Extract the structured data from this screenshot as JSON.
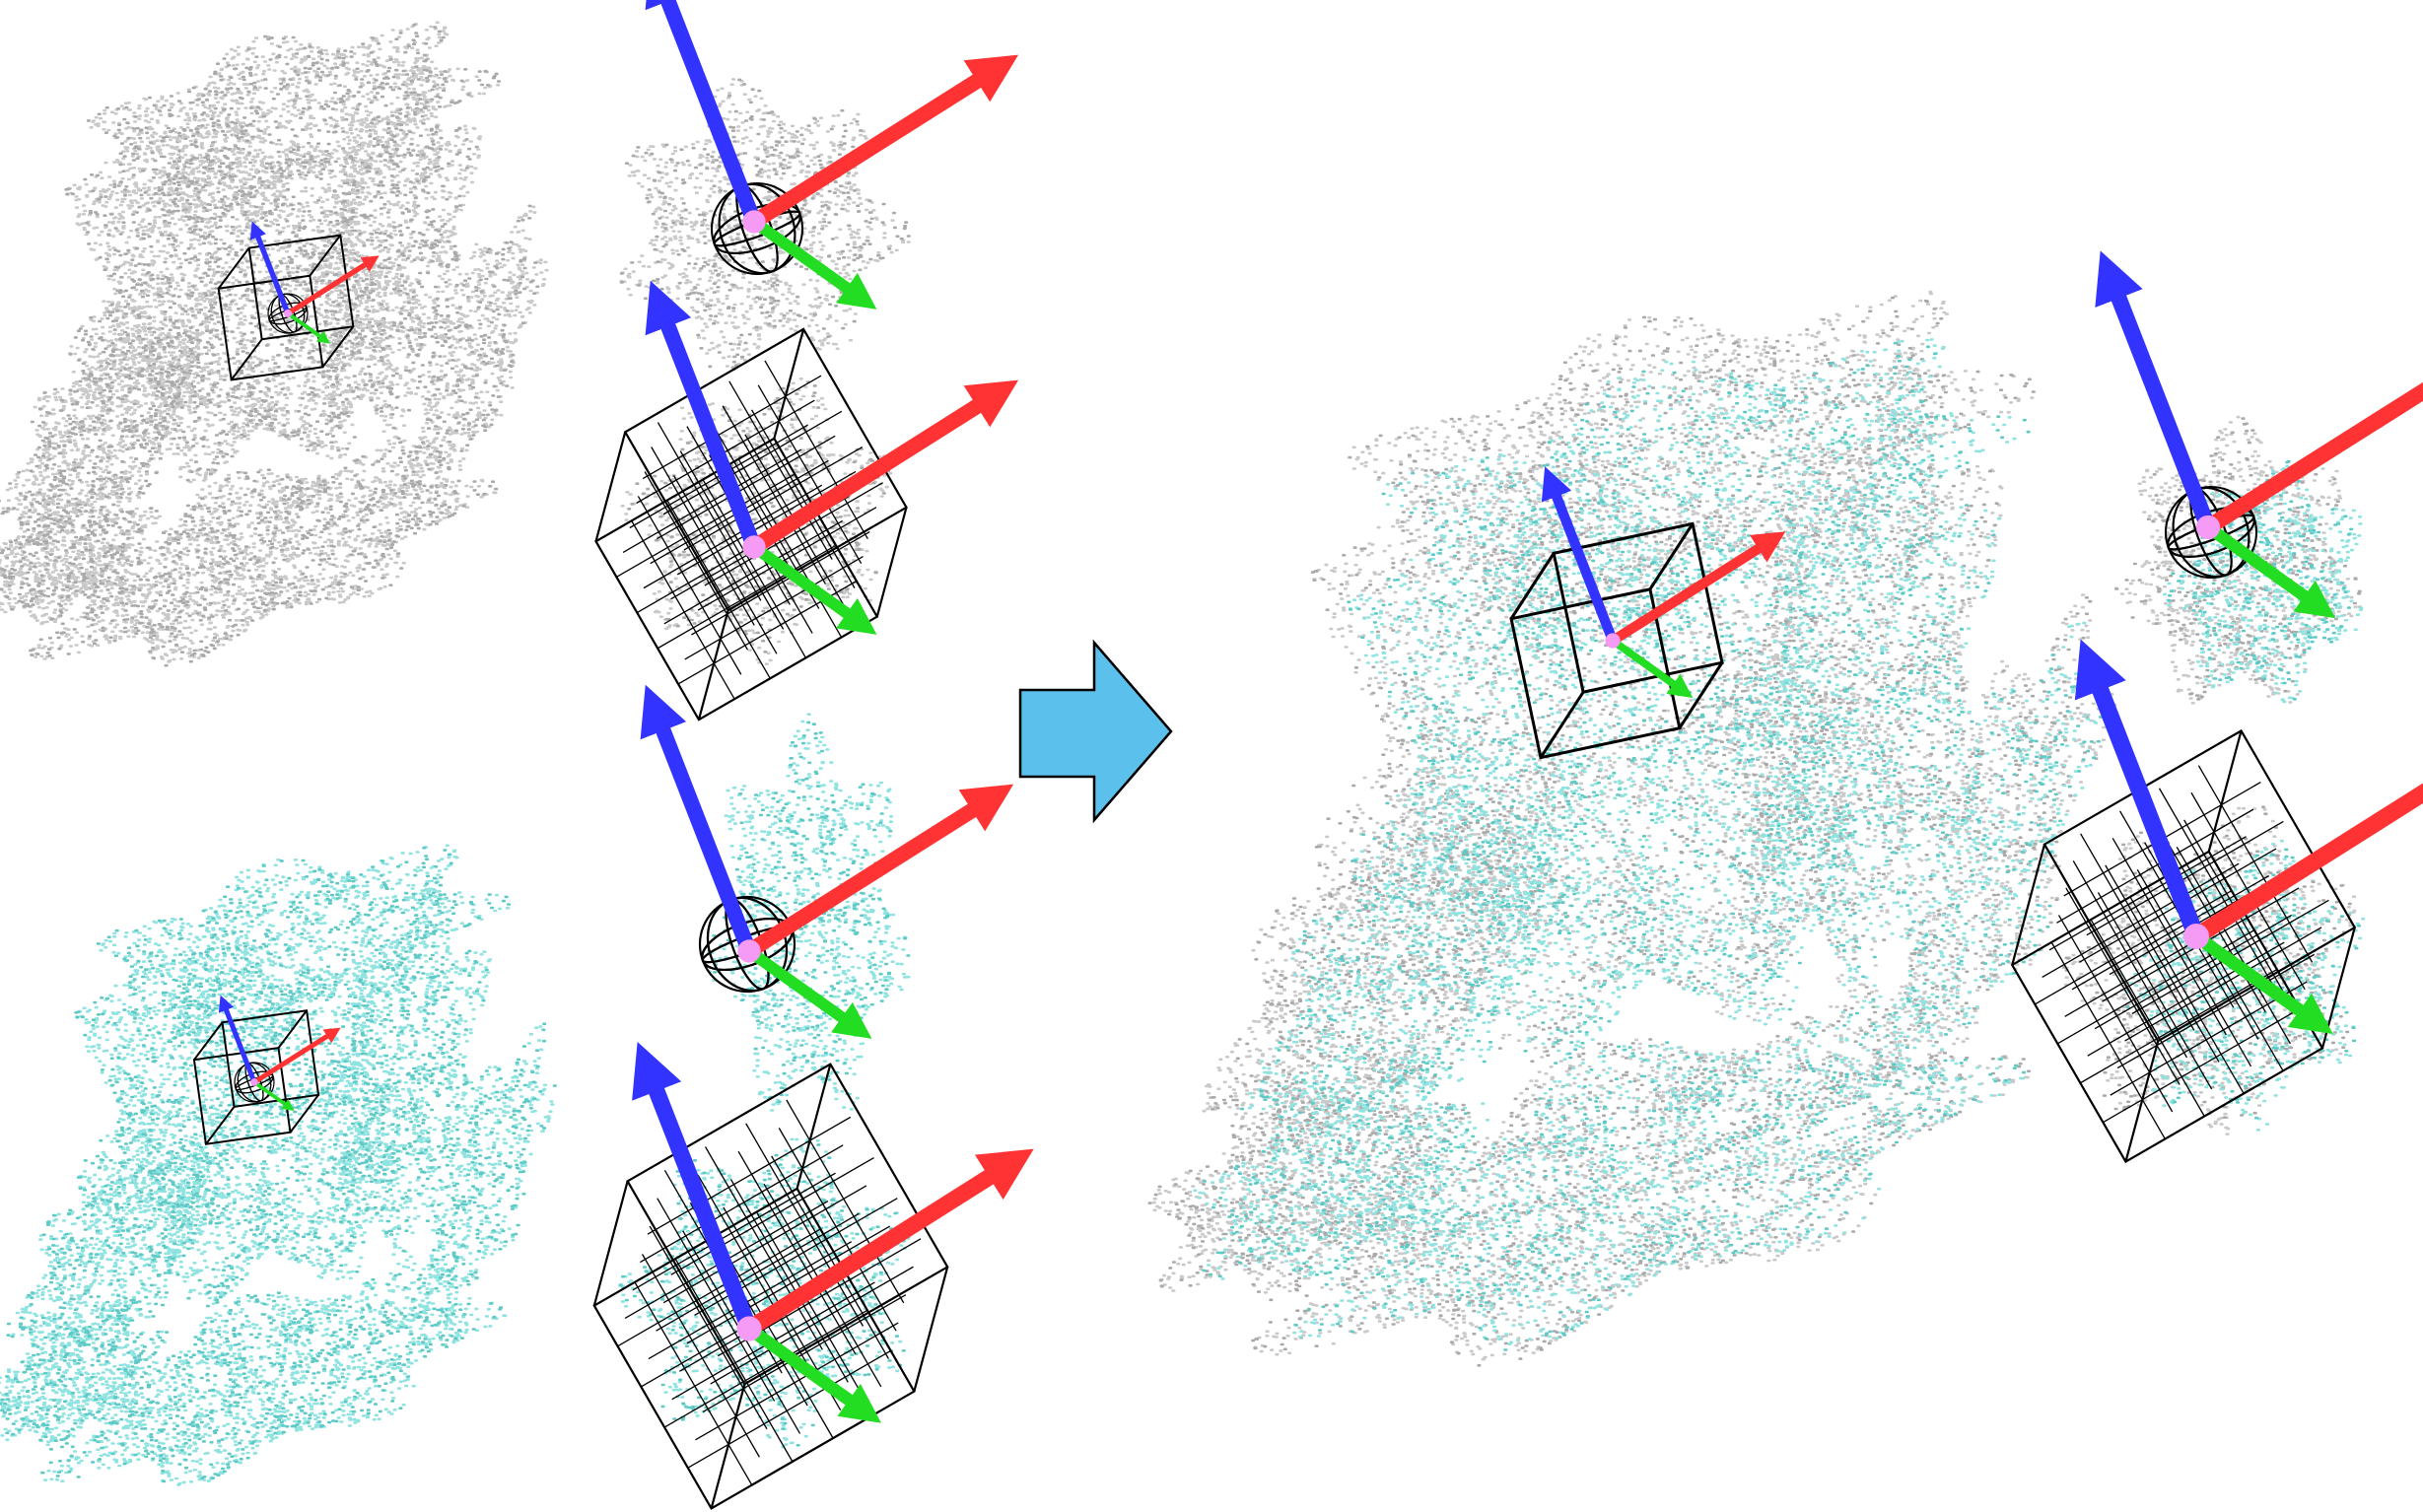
{
  "colors": {
    "background": "#ffffff",
    "source_cloud": "#c9c9c9",
    "source_cloud_dark": "#a9a9a9",
    "target_cloud": "#8fe3e0",
    "target_cloud_dark": "#5fc9c6",
    "axis_x": "#ff3333",
    "axis_y": "#22dd22",
    "axis_z": "#3333ff",
    "keypoint": "#f59af5",
    "wireframe": "#000000",
    "arrow_fill": "#5bc0eb",
    "arrow_stroke": "#000000"
  },
  "panels": [
    {
      "id": "source-cloud",
      "cloud": "source"
    },
    {
      "id": "source-sphere-patch",
      "cloud": "source"
    },
    {
      "id": "source-voxel-patch",
      "cloud": "source"
    },
    {
      "id": "target-cloud",
      "cloud": "target"
    },
    {
      "id": "target-sphere-patch",
      "cloud": "target"
    },
    {
      "id": "target-voxel-patch",
      "cloud": "target"
    },
    {
      "id": "registered-cloud",
      "cloud": "overlay"
    },
    {
      "id": "registered-sphere-patch",
      "cloud": "overlay"
    },
    {
      "id": "registered-voxel-patch",
      "cloud": "overlay"
    }
  ],
  "icons": {
    "flow_arrow": "right-arrow-icon",
    "local_frame": "xyz-axes-icon",
    "sphere": "wire-sphere-icon",
    "voxel_grid": "voxel-grid-icon"
  }
}
